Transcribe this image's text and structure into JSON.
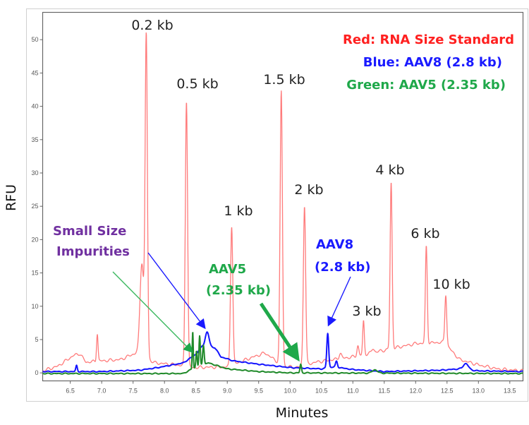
{
  "chart_data": {
    "type": "line",
    "xlabel": "Minutes",
    "ylabel": "RFU",
    "xlim": [
      6.06,
      13.71
    ],
    "ylim": [
      -1.2,
      54.1
    ],
    "grid": false,
    "xticks": [
      6.5,
      7.0,
      7.5,
      8.0,
      8.5,
      9.0,
      9.5,
      10.0,
      10.5,
      11.0,
      11.5,
      12.0,
      12.5,
      13.0,
      13.5
    ],
    "yticks": [
      0,
      5,
      10,
      15,
      20,
      25,
      30,
      35,
      40,
      45,
      50
    ],
    "legend": {
      "placement": "top-right",
      "entries": [
        {
          "text": "Red: RNA Size Standard",
          "color": "#ff2020"
        },
        {
          "text": "Blue: AAV8 (2.8 kb)",
          "color": "#1a1aff"
        },
        {
          "text": "Green: AAV5 (2.35 kb)",
          "color": "#1fa84a"
        }
      ]
    },
    "series": [
      {
        "name": "RNA Size Standard",
        "color": "#ff7b7b",
        "baseline": [
          [
            6.06,
            0.3
          ],
          [
            6.3,
            1.0
          ],
          [
            6.55,
            2.6
          ],
          [
            6.65,
            2.9
          ],
          [
            6.75,
            1.6
          ],
          [
            7.0,
            1.8
          ],
          [
            7.3,
            2.0
          ],
          [
            7.55,
            3.0
          ],
          [
            7.85,
            1.5
          ],
          [
            8.2,
            1.2
          ],
          [
            8.45,
            0.8
          ],
          [
            9.0,
            0.9
          ],
          [
            9.3,
            2.0
          ],
          [
            9.6,
            3.0
          ],
          [
            9.9,
            1.0
          ],
          [
            10.1,
            0.8
          ],
          [
            10.4,
            1.6
          ],
          [
            11.0,
            2.4
          ],
          [
            11.5,
            3.4
          ],
          [
            12.0,
            4.4
          ],
          [
            12.45,
            4.6
          ],
          [
            12.7,
            2.0
          ],
          [
            13.0,
            1.2
          ],
          [
            13.3,
            0.6
          ],
          [
            13.71,
            0.3
          ]
        ],
        "peaks": [
          [
            6.93,
            4.2,
            0.012
          ],
          [
            7.64,
            14,
            0.03
          ],
          [
            7.71,
            48,
            0.018
          ],
          [
            8.35,
            40,
            0.018
          ],
          [
            9.07,
            21,
            0.018
          ],
          [
            9.86,
            41,
            0.018
          ],
          [
            10.23,
            24,
            0.018
          ],
          [
            10.8,
            0.8,
            0.02
          ],
          [
            11.08,
            1.5,
            0.015
          ],
          [
            11.17,
            5,
            0.013
          ],
          [
            11.32,
            0.6,
            0.02
          ],
          [
            11.61,
            25,
            0.016
          ],
          [
            12.17,
            14.5,
            0.015
          ],
          [
            12.48,
            7.5,
            0.015
          ]
        ]
      },
      {
        "name": "AAV8 (2.8 kb)",
        "color": "#1414ff",
        "baseline": [
          [
            6.06,
            0.2
          ],
          [
            7.0,
            0.2
          ],
          [
            7.6,
            0.4
          ],
          [
            7.9,
            0.8
          ],
          [
            8.3,
            1.5
          ],
          [
            8.5,
            2.8
          ],
          [
            8.6,
            4.0
          ],
          [
            8.8,
            3.8
          ],
          [
            8.9,
            2.4
          ],
          [
            9.1,
            1.8
          ],
          [
            9.5,
            1.3
          ],
          [
            10.0,
            0.8
          ],
          [
            10.5,
            0.6
          ],
          [
            10.7,
            0.9
          ],
          [
            11.0,
            0.5
          ],
          [
            11.5,
            0.2
          ],
          [
            12.4,
            0.4
          ],
          [
            12.7,
            0.6
          ],
          [
            13.0,
            0.3
          ],
          [
            13.71,
            0.2
          ]
        ],
        "peaks": [
          [
            6.6,
            0.9,
            0.012
          ],
          [
            8.68,
            2.2,
            0.03
          ],
          [
            10.6,
            5.2,
            0.015
          ],
          [
            10.74,
            0.9,
            0.015
          ],
          [
            12.8,
            0.9,
            0.04
          ]
        ]
      },
      {
        "name": "AAV5 (2.35 kb)",
        "color": "#208a2a",
        "baseline": [
          [
            6.06,
            -0.1
          ],
          [
            8.3,
            -0.1
          ],
          [
            8.42,
            0.5
          ],
          [
            8.7,
            1.5
          ],
          [
            9.0,
            0.6
          ],
          [
            9.5,
            0.2
          ],
          [
            10.0,
            0.0
          ],
          [
            13.71,
            -0.1
          ]
        ],
        "peaks": [
          [
            8.45,
            5.6,
            0.008
          ],
          [
            8.51,
            2.5,
            0.01
          ],
          [
            8.56,
            4.5,
            0.01
          ],
          [
            8.62,
            3.0,
            0.012
          ],
          [
            10.17,
            1.3,
            0.012
          ],
          [
            11.35,
            0.5,
            0.04
          ]
        ]
      }
    ],
    "annotations": {
      "peak_labels": [
        "0.2 kb",
        "0.5 kb",
        "1 kb",
        "1.5 kb",
        "2 kb",
        "3 kb",
        "4 kb",
        "6 kb",
        "10 kb"
      ],
      "impurities": [
        "Small Size",
        "Impurities"
      ],
      "aav5": [
        "AAV5",
        "(2.35 kb)"
      ],
      "aav8": [
        "AAV8",
        "(2.8 kb)"
      ]
    }
  }
}
